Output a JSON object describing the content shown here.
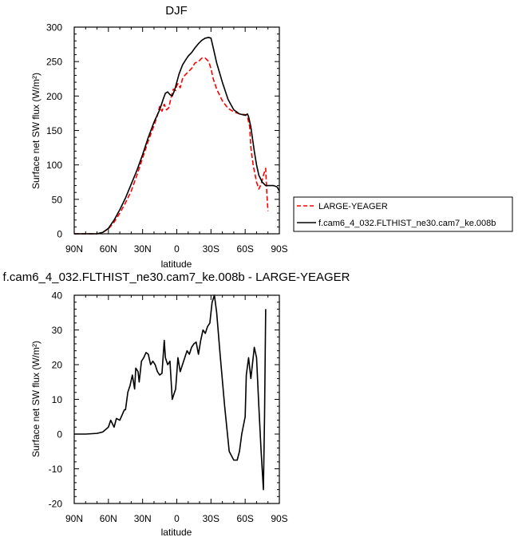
{
  "chart_data": [
    {
      "type": "line",
      "title": "DJF",
      "xlabel": "latitude",
      "ylabel": "Surface net SW flux (W/m²)",
      "xlim": [
        -90,
        90
      ],
      "ylim": [
        0,
        300
      ],
      "xticks": [
        {
          "value": -90,
          "label": "90N"
        },
        {
          "value": -60,
          "label": "60N"
        },
        {
          "value": -30,
          "label": "30N"
        },
        {
          "value": 0,
          "label": "0"
        },
        {
          "value": 30,
          "label": "30S"
        },
        {
          "value": 60,
          "label": "60S"
        },
        {
          "value": 90,
          "label": "90S"
        }
      ],
      "yticks": [
        0,
        50,
        100,
        150,
        200,
        250,
        300
      ],
      "legend_position": "right",
      "series": [
        {
          "name": "LARGE-YEAGER",
          "color": "#ff0000",
          "dash": "dashed",
          "x": [
            -90,
            -80,
            -70,
            -65,
            -60,
            -55,
            -50,
            -45,
            -40,
            -35,
            -30,
            -25,
            -20,
            -17,
            -15,
            -13,
            -11,
            -9,
            -7,
            -5,
            -3,
            -1,
            0,
            1,
            3,
            5,
            7,
            10,
            13,
            16,
            19,
            22,
            25,
            28,
            30,
            32,
            35,
            40,
            45,
            50,
            55,
            60,
            62,
            64,
            65,
            67,
            70,
            72,
            74,
            76,
            78,
            79,
            80
          ],
          "y": [
            0,
            0,
            0,
            2,
            7,
            17,
            30,
            45,
            62,
            85,
            110,
            135,
            157,
            172,
            185,
            178,
            188,
            180,
            183,
            198,
            210,
            208,
            215,
            218,
            212,
            225,
            230,
            235,
            240,
            248,
            250,
            255,
            255,
            250,
            240,
            225,
            210,
            193,
            182,
            177,
            174,
            173,
            170,
            155,
            125,
            100,
            75,
            65,
            72,
            85,
            95,
            60,
            33
          ]
        },
        {
          "name": "f.cam6_4_032.FLTHIST_ne30.cam7_ke.008b",
          "color": "#000000",
          "dash": "solid",
          "x": [
            -90,
            -80,
            -70,
            -65,
            -60,
            -55,
            -50,
            -45,
            -40,
            -35,
            -30,
            -25,
            -20,
            -15,
            -12,
            -10,
            -8,
            -6,
            -4,
            -2,
            0,
            2,
            5,
            8,
            10,
            13,
            16,
            19,
            22,
            25,
            28,
            30,
            32,
            35,
            40,
            45,
            50,
            55,
            60,
            62,
            63,
            65,
            68,
            70,
            72,
            75,
            78,
            80,
            82,
            85,
            88,
            90
          ],
          "y": [
            0,
            0,
            0,
            2,
            8,
            20,
            35,
            52,
            72,
            92,
            115,
            140,
            162,
            180,
            195,
            204,
            206,
            202,
            200,
            208,
            220,
            232,
            245,
            253,
            258,
            263,
            270,
            276,
            281,
            284,
            285,
            284,
            270,
            248,
            220,
            195,
            180,
            174,
            172,
            174,
            170,
            155,
            120,
            100,
            85,
            75,
            70,
            70,
            70,
            70,
            68,
            62
          ]
        }
      ]
    },
    {
      "type": "line",
      "title": "f.cam6_4_032.FLTHIST_ne30.cam7_ke.008b - LARGE-YEAGER",
      "xlabel": "latitude",
      "ylabel": "Surface net SW flux (W/m²)",
      "xlim": [
        -90,
        90
      ],
      "ylim": [
        -20,
        40
      ],
      "xticks": [
        {
          "value": -90,
          "label": "90N"
        },
        {
          "value": -60,
          "label": "60N"
        },
        {
          "value": -30,
          "label": "30N"
        },
        {
          "value": 0,
          "label": "0"
        },
        {
          "value": 30,
          "label": "30S"
        },
        {
          "value": 60,
          "label": "60S"
        },
        {
          "value": 90,
          "label": "90S"
        }
      ],
      "yticks": [
        -20,
        -10,
        0,
        10,
        20,
        30,
        40
      ],
      "series": [
        {
          "color": "#000000",
          "x": [
            -90,
            -80,
            -70,
            -65,
            -60,
            -58,
            -55,
            -53,
            -50,
            -48,
            -46,
            -45,
            -43,
            -41,
            -39,
            -37,
            -36,
            -34,
            -33,
            -31,
            -29,
            -27,
            -25,
            -23,
            -21,
            -19,
            -17,
            -15,
            -13,
            -11,
            -10,
            -8,
            -6,
            -4,
            -2,
            -1,
            1,
            3,
            5,
            7,
            9,
            11,
            13,
            15,
            17,
            19,
            21,
            23,
            25,
            27,
            29,
            30,
            31,
            32,
            33,
            35,
            38,
            42,
            46,
            50,
            53,
            55,
            57,
            60,
            61,
            63,
            65,
            67,
            68,
            70,
            72,
            74,
            76,
            77,
            78
          ],
          "y": [
            0,
            0,
            0.2,
            0.6,
            2,
            4,
            2,
            4.5,
            4,
            5.5,
            7,
            7,
            12,
            14,
            17,
            13,
            19,
            18,
            15,
            21,
            22,
            23.5,
            23,
            20,
            21,
            20,
            18,
            17,
            17.5,
            27,
            22,
            20,
            21,
            10,
            12,
            13,
            22,
            18,
            20,
            22,
            24,
            23,
            25,
            26,
            26.5,
            23,
            27,
            30,
            29,
            31,
            32,
            35,
            38,
            39,
            40,
            35,
            23,
            8,
            -5,
            -7.5,
            -7.5,
            -5,
            0,
            5,
            17,
            22,
            16,
            22,
            25,
            22,
            8,
            -5,
            -16,
            5,
            36
          ]
        }
      ]
    }
  ]
}
